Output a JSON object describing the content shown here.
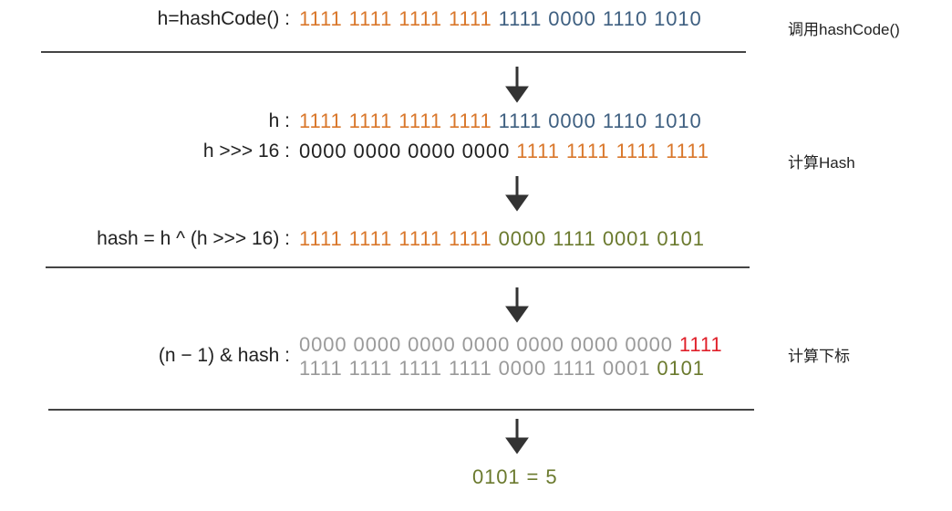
{
  "rows": [
    {
      "label": "h=hashCode() :",
      "segments": [
        "1111 1111 1111 1111",
        "1111 0000 1110 1010"
      ]
    },
    {
      "label": "h :",
      "segments": [
        "1111 1111 1111 1111",
        "1111 0000 1110 1010"
      ]
    },
    {
      "label": "h >>> 16 :",
      "segments": [
        "0000 0000 0000 0000",
        "1111 1111 1111 1111"
      ]
    },
    {
      "label": "hash = h ^ (h >>> 16) :",
      "segments": [
        "1111 1111 1111 1111",
        "0000 1111 0001 0101"
      ]
    },
    {
      "label": "(n − 1) & hash :",
      "segments": [
        "0000 0000 0000 0000 0000 0000 0000",
        "1111"
      ]
    },
    {
      "segments": [
        "1111 1111 1111 1111 0000 1111 0001",
        "0101"
      ]
    }
  ],
  "notes": [
    "调用hashCode()",
    "计算Hash",
    "计算下标"
  ],
  "result": "0101 = 5"
}
